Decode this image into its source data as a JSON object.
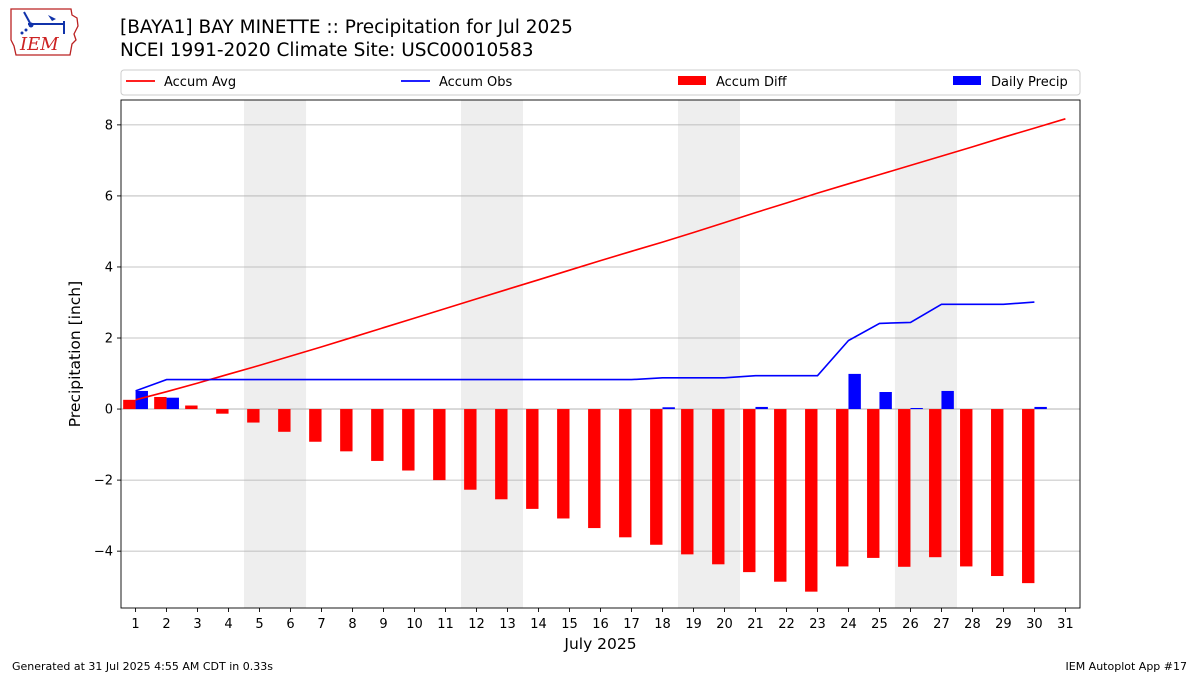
{
  "header": {
    "title_line1": "[BAYA1] BAY MINETTE :: Precipitation for Jul 2025",
    "title_line2": "NCEI 1991-2020 Climate Site: USC00010583"
  },
  "logo": {
    "icon": "iem-logo-icon",
    "text": "IEM"
  },
  "footer": {
    "generated": "Generated at 31 Jul 2025 4:55 AM CDT in 0.33s",
    "app": "IEM Autoplot App #17"
  },
  "chart_data": {
    "type": "bar",
    "xlabel": "July 2025",
    "ylabel": "Precipitation [inch]",
    "ylim": [
      -5.6,
      8.7
    ],
    "yticks": [
      -4,
      -2,
      0,
      2,
      4,
      6,
      8
    ],
    "xticks": [
      1,
      2,
      3,
      4,
      5,
      6,
      7,
      8,
      9,
      10,
      11,
      12,
      13,
      14,
      15,
      16,
      17,
      18,
      19,
      20,
      21,
      22,
      23,
      24,
      25,
      26,
      27,
      28,
      29,
      30,
      31
    ],
    "grid": "horizontal",
    "legend_placement": "top",
    "weekend_shading": [
      [
        5,
        6
      ],
      [
        12,
        13
      ],
      [
        19,
        20
      ],
      [
        26,
        27
      ]
    ],
    "series": [
      {
        "name": "Accum Avg",
        "type": "line",
        "color": "#ff0000",
        "x": [
          1,
          2,
          3,
          4,
          5,
          6,
          7,
          8,
          9,
          10,
          11,
          12,
          13,
          14,
          15,
          16,
          17,
          18,
          19,
          20,
          21,
          22,
          23,
          24,
          25,
          26,
          27,
          28,
          29,
          30,
          31
        ],
        "values": [
          0.26,
          0.49,
          0.73,
          0.98,
          1.23,
          1.49,
          1.75,
          2.02,
          2.29,
          2.56,
          2.83,
          3.1,
          3.37,
          3.64,
          3.91,
          4.18,
          4.44,
          4.7,
          4.97,
          5.25,
          5.53,
          5.8,
          6.08,
          6.34,
          6.6,
          6.86,
          7.12,
          7.38,
          7.65,
          7.91,
          8.17
        ]
      },
      {
        "name": "Accum Obs",
        "type": "line",
        "color": "#0000ff",
        "x": [
          1,
          2,
          3,
          4,
          5,
          6,
          7,
          8,
          9,
          10,
          11,
          12,
          13,
          14,
          15,
          16,
          17,
          18,
          19,
          20,
          21,
          22,
          23,
          24,
          25,
          26,
          27,
          28,
          29,
          30
        ],
        "values": [
          0.51,
          0.83,
          0.83,
          0.83,
          0.83,
          0.83,
          0.83,
          0.83,
          0.83,
          0.83,
          0.83,
          0.83,
          0.83,
          0.83,
          0.83,
          0.83,
          0.83,
          0.88,
          0.88,
          0.88,
          0.94,
          0.94,
          0.94,
          1.93,
          2.41,
          2.44,
          2.95,
          2.95,
          2.95,
          3.01
        ]
      },
      {
        "name": "Accum Diff",
        "type": "bar",
        "color": "#ff0000",
        "x": [
          1,
          2,
          3,
          4,
          5,
          6,
          7,
          8,
          9,
          10,
          11,
          12,
          13,
          14,
          15,
          16,
          17,
          18,
          19,
          20,
          21,
          22,
          23,
          24,
          25,
          26,
          27,
          28,
          29,
          30
        ],
        "values": [
          0.26,
          0.34,
          0.1,
          -0.13,
          -0.38,
          -0.64,
          -0.92,
          -1.19,
          -1.46,
          -1.73,
          -2.0,
          -2.27,
          -2.54,
          -2.81,
          -3.08,
          -3.35,
          -3.61,
          -3.82,
          -4.09,
          -4.37,
          -4.59,
          -4.86,
          -5.14,
          -4.43,
          -4.19,
          -4.44,
          -4.17,
          -4.43,
          -4.7,
          -4.9
        ]
      },
      {
        "name": "Daily Precip",
        "type": "bar",
        "color": "#0000ff",
        "x": [
          1,
          2,
          3,
          4,
          5,
          6,
          7,
          8,
          9,
          10,
          11,
          12,
          13,
          14,
          15,
          16,
          17,
          18,
          19,
          20,
          21,
          22,
          23,
          24,
          25,
          26,
          27,
          28,
          29,
          30
        ],
        "values": [
          0.51,
          0.32,
          0,
          0,
          0,
          0,
          0,
          0,
          0,
          0,
          0,
          0,
          0,
          0,
          0,
          0,
          0,
          0.05,
          0,
          0,
          0.06,
          0,
          0,
          0.99,
          0.48,
          0.03,
          0.51,
          0,
          0,
          0.06
        ]
      }
    ]
  }
}
